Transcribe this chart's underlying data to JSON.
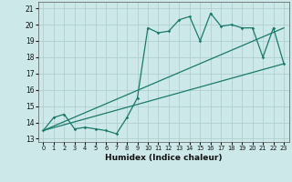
{
  "xlabel": "Humidex (Indice chaleur)",
  "bg_color": "#cce8e8",
  "grid_color": "#aacccc",
  "line_color": "#1a7a6a",
  "xlim": [
    -0.5,
    23.5
  ],
  "ylim": [
    12.8,
    21.4
  ],
  "xticks": [
    0,
    1,
    2,
    3,
    4,
    5,
    6,
    7,
    8,
    9,
    10,
    11,
    12,
    13,
    14,
    15,
    16,
    17,
    18,
    19,
    20,
    21,
    22,
    23
  ],
  "yticks": [
    13,
    14,
    15,
    16,
    17,
    18,
    19,
    20,
    21
  ],
  "line1_x": [
    0,
    1,
    2,
    3,
    4,
    5,
    6,
    7,
    8,
    9,
    10,
    11,
    12,
    13,
    14,
    15,
    16,
    17,
    18,
    19,
    20,
    21,
    22,
    23
  ],
  "line1_y": [
    13.5,
    14.3,
    14.5,
    13.6,
    13.7,
    13.6,
    13.5,
    13.3,
    14.3,
    15.5,
    19.8,
    19.5,
    19.6,
    20.3,
    20.5,
    19.0,
    20.7,
    19.9,
    20.0,
    19.8,
    19.8,
    18.0,
    19.8,
    17.6
  ],
  "line2_x": [
    0,
    23
  ],
  "line2_y": [
    13.5,
    17.6
  ],
  "line3_x": [
    0,
    23
  ],
  "line3_y": [
    13.5,
    19.8
  ]
}
